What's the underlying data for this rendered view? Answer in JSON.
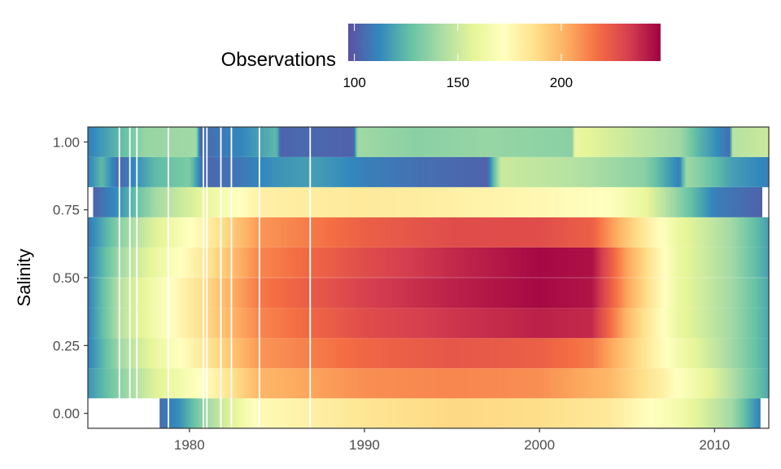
{
  "chart_data": {
    "type": "heatmap",
    "ylabel": "Salinity",
    "xlabel": "",
    "xlim": [
      1974.2,
      2013.1
    ],
    "ylim": [
      -0.055,
      1.055
    ],
    "x_ticks": [
      1980,
      1990,
      2000,
      2010
    ],
    "y_ticks": [
      0.0,
      0.25,
      0.5,
      0.75,
      1.0
    ],
    "y_tick_labels": [
      "0.00",
      "0.25",
      "0.50",
      "0.75",
      "1.00"
    ],
    "y_bins": [
      0.0,
      0.111,
      0.222,
      0.333,
      0.444,
      0.556,
      0.667,
      0.778,
      0.889,
      1.0
    ],
    "x_bin_width": 0.1,
    "legend": {
      "title": "Observations",
      "position": "top",
      "min": 97,
      "max": 248,
      "ticks": [
        100,
        150,
        200
      ],
      "palette": [
        "#5E4FA2",
        "#3288BD",
        "#66C2A5",
        "#ABDDA4",
        "#E6F598",
        "#FFFFBF",
        "#FEE08B",
        "#FDAE61",
        "#F46D43",
        "#D53E4F",
        "#9E0142"
      ]
    },
    "white_gaps": [
      1976.0,
      1976.6,
      1977.0,
      1978.8,
      1980.8,
      1981.0,
      1981.8,
      1982.4,
      1984.0,
      1986.9
    ],
    "rows": [
      {
        "y": 0.0,
        "start": 1978.3,
        "end": 2012.6,
        "keyframes": [
          [
            1978.3,
            105
          ],
          [
            1979.5,
            115
          ],
          [
            1981,
            140
          ],
          [
            1984,
            175
          ],
          [
            1990,
            185
          ],
          [
            1995,
            190
          ],
          [
            2000,
            188
          ],
          [
            2004,
            183
          ],
          [
            2008,
            165
          ],
          [
            2011,
            140
          ],
          [
            2012.6,
            110
          ]
        ]
      },
      {
        "y": 0.111,
        "start": 1974.2,
        "end": 2013.1,
        "keyframes": [
          [
            1974.2,
            115
          ],
          [
            1976,
            135
          ],
          [
            1978,
            155
          ],
          [
            1981,
            175
          ],
          [
            1984,
            200
          ],
          [
            1990,
            210
          ],
          [
            1995,
            212
          ],
          [
            2000,
            210
          ],
          [
            2004,
            200
          ],
          [
            2007,
            180
          ],
          [
            2010,
            155
          ],
          [
            2013.1,
            120
          ]
        ]
      },
      {
        "y": 0.222,
        "start": 1974.2,
        "end": 2013.1,
        "keyframes": [
          [
            1974.2,
            110
          ],
          [
            1976,
            140
          ],
          [
            1978,
            160
          ],
          [
            1981,
            185
          ],
          [
            1984,
            208
          ],
          [
            1990,
            220
          ],
          [
            1995,
            225
          ],
          [
            2000,
            222
          ],
          [
            2003,
            215
          ],
          [
            2005,
            195
          ],
          [
            2008,
            165
          ],
          [
            2011,
            140
          ],
          [
            2013.1,
            120
          ]
        ]
      },
      {
        "y": 0.333,
        "start": 1974.2,
        "end": 2013.1,
        "keyframes": [
          [
            1974.2,
            110
          ],
          [
            1976,
            145
          ],
          [
            1978,
            165
          ],
          [
            1981,
            190
          ],
          [
            1984,
            212
          ],
          [
            1990,
            228
          ],
          [
            1995,
            235
          ],
          [
            2000,
            240
          ],
          [
            2003,
            238
          ],
          [
            2005,
            200
          ],
          [
            2008,
            160
          ],
          [
            2011,
            140
          ],
          [
            2013.1,
            120
          ]
        ]
      },
      {
        "y": 0.444,
        "start": 1974.2,
        "end": 2013.1,
        "keyframes": [
          [
            1974.2,
            110
          ],
          [
            1976,
            145
          ],
          [
            1978,
            165
          ],
          [
            1981,
            190
          ],
          [
            1984,
            215
          ],
          [
            1990,
            232
          ],
          [
            1995,
            240
          ],
          [
            2000,
            246
          ],
          [
            2003,
            243
          ],
          [
            2005,
            205
          ],
          [
            2008,
            160
          ],
          [
            2011,
            140
          ],
          [
            2013.1,
            120
          ]
        ]
      },
      {
        "y": 0.556,
        "start": 1974.2,
        "end": 2013.1,
        "keyframes": [
          [
            1974.2,
            110
          ],
          [
            1976,
            140
          ],
          [
            1978,
            160
          ],
          [
            1981,
            185
          ],
          [
            1984,
            212
          ],
          [
            1990,
            228
          ],
          [
            1995,
            238
          ],
          [
            2000,
            246
          ],
          [
            2003,
            244
          ],
          [
            2005,
            205
          ],
          [
            2008,
            160
          ],
          [
            2011,
            140
          ],
          [
            2013.1,
            118
          ]
        ]
      },
      {
        "y": 0.667,
        "start": 1974.2,
        "end": 2013.1,
        "keyframes": [
          [
            1974.2,
            108
          ],
          [
            1976,
            135
          ],
          [
            1978,
            155
          ],
          [
            1981,
            180
          ],
          [
            1984,
            208
          ],
          [
            1990,
            222
          ],
          [
            1995,
            228
          ],
          [
            2000,
            228
          ],
          [
            2003,
            222
          ],
          [
            2005,
            195
          ],
          [
            2008,
            160
          ],
          [
            2011,
            140
          ],
          [
            2013.1,
            118
          ]
        ]
      },
      {
        "y": 0.778,
        "start": 1974.5,
        "end": 2012.7,
        "keyframes": [
          [
            1974.5,
            102
          ],
          [
            1976,
            115
          ],
          [
            1978,
            140
          ],
          [
            1981,
            160
          ],
          [
            1984,
            180
          ],
          [
            1990,
            183
          ],
          [
            1995,
            180
          ],
          [
            2000,
            176
          ],
          [
            2004,
            172
          ],
          [
            2006,
            160
          ],
          [
            2008,
            135
          ],
          [
            2010,
            110
          ],
          [
            2012.7,
            102
          ]
        ]
      },
      {
        "y": 0.889,
        "start": 1974.2,
        "end": 2013.1,
        "keyframes": [
          [
            1974.2,
            110
          ],
          [
            1975,
            125
          ],
          [
            1976,
            103
          ],
          [
            1978,
            125
          ],
          [
            1980,
            132
          ],
          [
            1980.8,
            103
          ],
          [
            1983,
            108
          ],
          [
            1985,
            115
          ],
          [
            1987,
            118
          ],
          [
            1990,
            110
          ],
          [
            1993,
            106
          ],
          [
            1997,
            102
          ],
          [
            1997.8,
            150
          ],
          [
            2002,
            145
          ],
          [
            2006,
            135
          ],
          [
            2008,
            110
          ],
          [
            2008.4,
            140
          ],
          [
            2011,
            118
          ],
          [
            2013.1,
            110
          ]
        ]
      },
      {
        "y": 1.0,
        "start": 1974.2,
        "end": 2013.1,
        "keyframes": [
          [
            1974.2,
            110
          ],
          [
            1976,
            125
          ],
          [
            1977.5,
            138
          ],
          [
            1980.4,
            140
          ],
          [
            1980.6,
            104
          ],
          [
            1983,
            112
          ],
          [
            1985,
            125
          ],
          [
            1985.2,
            102
          ],
          [
            1986.3,
            104
          ],
          [
            1989.4,
            102
          ],
          [
            1989.6,
            140
          ],
          [
            1993,
            135
          ],
          [
            1997,
            138
          ],
          [
            2001.9,
            135
          ],
          [
            2002,
            160
          ],
          [
            2005,
            150
          ],
          [
            2008,
            140
          ],
          [
            2009,
            125
          ],
          [
            2010.9,
            105
          ],
          [
            2011,
            145
          ],
          [
            2013.1,
            150
          ]
        ]
      }
    ]
  }
}
